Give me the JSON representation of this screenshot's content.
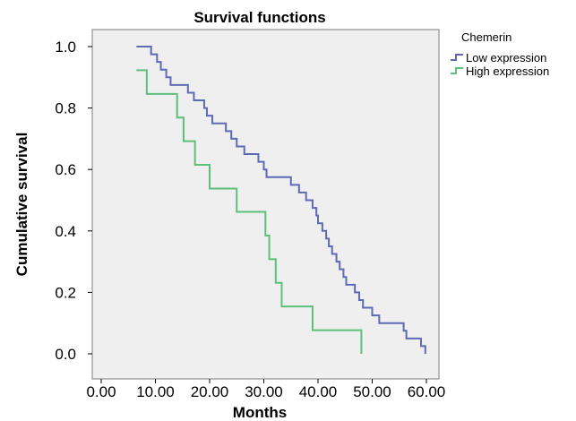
{
  "chart_data": {
    "type": "line",
    "step": true,
    "title": "Survival functions",
    "xlabel": "Months",
    "ylabel": "Cumulative survival",
    "xlim": [
      0,
      60
    ],
    "ylim": [
      0,
      1.0
    ],
    "xticks": [
      "0.00",
      "10.00",
      "20.00",
      "30.00",
      "40.00",
      "50.00",
      "60.00"
    ],
    "yticks": [
      "0.0",
      "0.2",
      "0.4",
      "0.6",
      "0.8",
      "1.0"
    ],
    "grid": false,
    "legend": {
      "title": "Chemerin",
      "position": "top-right",
      "entries": [
        "Low expression",
        "High expression"
      ]
    },
    "series": [
      {
        "name": "Low expression",
        "color": "#5f6ab5",
        "points": [
          [
            6.5,
            1.0
          ],
          [
            9.2,
            0.975
          ],
          [
            10.3,
            0.95
          ],
          [
            11.0,
            0.925
          ],
          [
            12.0,
            0.9
          ],
          [
            12.8,
            0.875
          ],
          [
            16.0,
            0.85
          ],
          [
            17.1,
            0.825
          ],
          [
            19.0,
            0.8
          ],
          [
            19.5,
            0.775
          ],
          [
            20.5,
            0.75
          ],
          [
            23.0,
            0.725
          ],
          [
            24.0,
            0.7
          ],
          [
            25.0,
            0.675
          ],
          [
            26.4,
            0.65
          ],
          [
            29.0,
            0.625
          ],
          [
            30.0,
            0.6
          ],
          [
            30.5,
            0.575
          ],
          [
            35.0,
            0.55
          ],
          [
            36.5,
            0.525
          ],
          [
            37.8,
            0.5
          ],
          [
            39.0,
            0.475
          ],
          [
            39.7,
            0.45
          ],
          [
            40.0,
            0.425
          ],
          [
            40.8,
            0.4
          ],
          [
            41.5,
            0.375
          ],
          [
            42.0,
            0.35
          ],
          [
            42.6,
            0.325
          ],
          [
            43.4,
            0.3
          ],
          [
            44.0,
            0.275
          ],
          [
            44.7,
            0.25
          ],
          [
            45.2,
            0.225
          ],
          [
            46.8,
            0.2
          ],
          [
            47.6,
            0.175
          ],
          [
            48.3,
            0.15
          ],
          [
            50.0,
            0.125
          ],
          [
            51.3,
            0.1
          ],
          [
            55.8,
            0.075
          ],
          [
            56.3,
            0.05
          ],
          [
            59.0,
            0.025
          ],
          [
            59.8,
            0.0
          ]
        ]
      },
      {
        "name": "High expression",
        "color": "#5dbf7a",
        "points": [
          [
            6.5,
            0.923
          ],
          [
            8.4,
            0.846
          ],
          [
            14.0,
            0.769
          ],
          [
            15.2,
            0.692
          ],
          [
            17.3,
            0.615
          ],
          [
            20.0,
            0.538
          ],
          [
            25.0,
            0.462
          ],
          [
            30.3,
            0.385
          ],
          [
            31.0,
            0.308
          ],
          [
            32.2,
            0.231
          ],
          [
            33.3,
            0.154
          ],
          [
            39.0,
            0.077
          ],
          [
            48.0,
            0.0
          ]
        ]
      }
    ]
  }
}
